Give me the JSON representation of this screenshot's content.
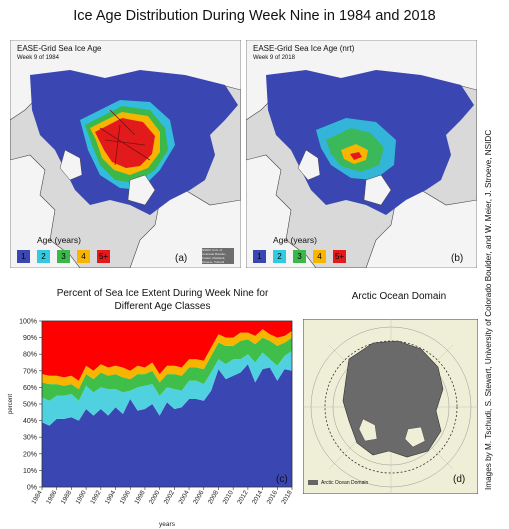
{
  "main_title": "Ice Age Distribution During Week Nine in 1984 and 2018",
  "map_a": {
    "title": "EASE-Grid Sea Ice Age",
    "subtitle": "Week 9 of 1984",
    "legend_title": "Age (years)",
    "legend_labels": [
      "1",
      "2",
      "3",
      "4",
      "5+"
    ],
    "panel_label": "(a)",
    "credit": "NSIDC Univ. of Colorado Boulder, Fowler, Maslanik, Stroeve, Tschudi"
  },
  "map_b": {
    "title": "EASE-Grid Sea Ice Age (nrt)",
    "subtitle": "Week 9 of 2018",
    "legend_title": "Age (years)",
    "legend_labels": [
      "1",
      "2",
      "3",
      "4",
      "5+"
    ],
    "panel_label": "(b)"
  },
  "legend_colors": [
    "#3a47b2",
    "#33c9e0",
    "#3cb84a",
    "#f7b500",
    "#e31a1c"
  ],
  "chart_title_line1": "Percent of Sea Ice Extent During Week Nine for",
  "chart_title_line2": "Different Age Classes",
  "domain": {
    "title": "Arctic Ocean Domain",
    "legend_label": "Arctic Ocean Domain",
    "panel_label": "(d)"
  },
  "side_credit": "Images by M. Tschudi, S. Stewart, University of Colorado Boulder, and W. Meier, J. Stroeve, NSIDC",
  "chart_data": {
    "type": "area",
    "stacked": true,
    "title": "Percent of Sea Ice Extent During Week Nine for Different Age Classes",
    "xlabel": "years",
    "ylabel": "percent",
    "ylim": [
      0,
      100
    ],
    "yticks": [
      "0%",
      "10%",
      "20%",
      "30%",
      "40%",
      "50%",
      "60%",
      "70%",
      "80%",
      "90%",
      "100%"
    ],
    "xticks": [
      "1984",
      "1986",
      "1988",
      "1990",
      "1992",
      "1994",
      "1996",
      "1998",
      "2000",
      "2002",
      "2004",
      "2006",
      "2008",
      "2010",
      "2012",
      "2014",
      "2016",
      "2018"
    ],
    "panel_label": "(c)",
    "colors": [
      "#3a47b2",
      "#4fd1e0",
      "#3fbf4a",
      "#f7b500",
      "#ff0000"
    ],
    "x": [
      1984,
      1985,
      1986,
      1987,
      1988,
      1989,
      1990,
      1991,
      1992,
      1993,
      1994,
      1995,
      1996,
      1997,
      1998,
      1999,
      2000,
      2001,
      2002,
      2003,
      2004,
      2005,
      2006,
      2007,
      2008,
      2009,
      2010,
      2011,
      2012,
      2013,
      2014,
      2015,
      2016,
      2017,
      2018
    ],
    "series": [
      {
        "values": [
          39,
          37,
          41,
          41,
          42,
          40,
          47,
          43,
          47,
          43,
          48,
          44,
          53,
          46,
          47,
          50,
          43,
          51,
          47,
          48,
          53,
          53,
          52,
          58,
          71,
          65,
          67,
          69,
          74,
          63,
          71,
          72,
          64,
          71,
          70
        ]
      },
      {
        "values": [
          15,
          15,
          14,
          14,
          14,
          12,
          14,
          14,
          13,
          16,
          11,
          13,
          5,
          14,
          14,
          12,
          12,
          9,
          12,
          10,
          11,
          11,
          10,
          11,
          6,
          9,
          10,
          8,
          6,
          12,
          10,
          5,
          9,
          8,
          12
        ]
      },
      {
        "values": [
          9,
          10,
          7,
          6,
          6,
          7,
          7,
          8,
          9,
          8,
          9,
          9,
          7,
          8,
          7,
          8,
          8,
          8,
          9,
          9,
          8,
          8,
          9,
          10,
          10,
          11,
          8,
          11,
          9,
          11,
          9,
          11,
          12,
          8,
          8
        ]
      },
      {
        "values": [
          5,
          5,
          5,
          5,
          5,
          5,
          5,
          5,
          5,
          5,
          5,
          6,
          5,
          5,
          4,
          5,
          5,
          5,
          5,
          5,
          5,
          5,
          5,
          5,
          5,
          5,
          5,
          5,
          4,
          5,
          5,
          4,
          5,
          4,
          4
        ]
      },
      {
        "values": [
          32,
          33,
          33,
          34,
          33,
          36,
          27,
          30,
          26,
          28,
          27,
          28,
          30,
          27,
          28,
          25,
          32,
          27,
          27,
          28,
          23,
          23,
          24,
          16,
          8,
          10,
          10,
          7,
          7,
          9,
          5,
          8,
          10,
          9,
          6
        ]
      }
    ]
  }
}
